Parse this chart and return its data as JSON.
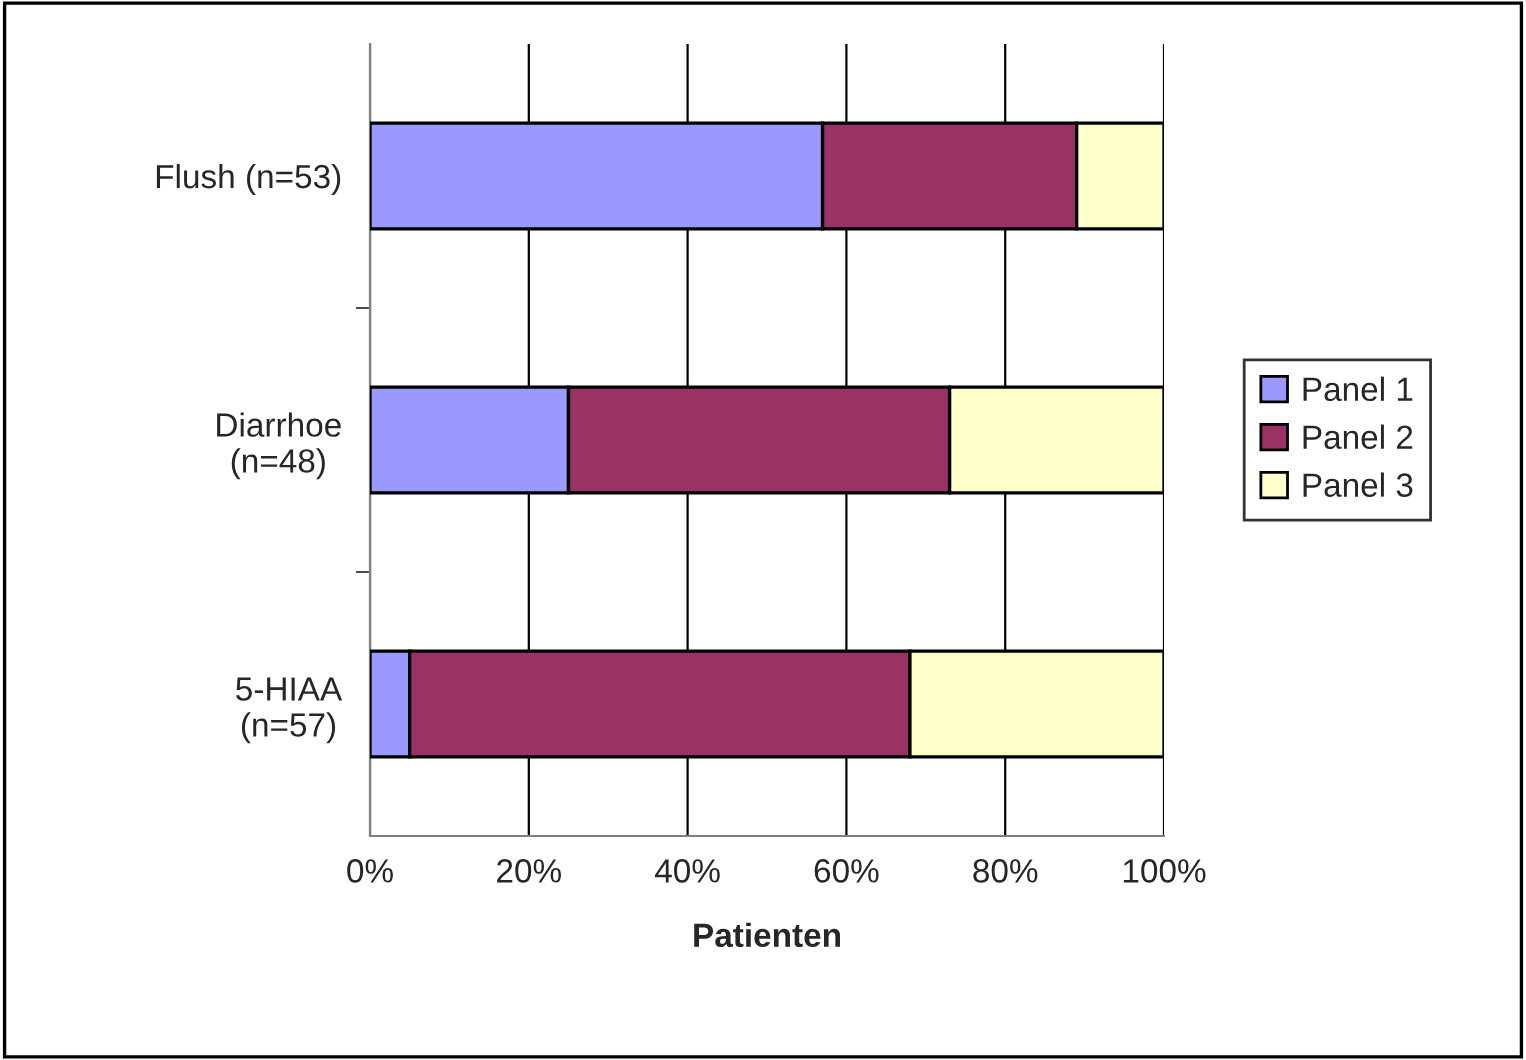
{
  "chart_data": {
    "type": "bar",
    "orientation": "horizontal",
    "stacked": true,
    "categories": [
      "Flush (n=53)",
      "Diarrhoe\n(n=48)",
      "5-HIAA\n(n=57)"
    ],
    "series": [
      {
        "name": "Panel 1",
        "color": "#9999ff",
        "values": [
          57,
          25,
          5
        ]
      },
      {
        "name": "Panel 2",
        "color": "#993366",
        "values": [
          32,
          48,
          63
        ]
      },
      {
        "name": "Panel 3",
        "color": "#ffffcc",
        "values": [
          11,
          27,
          32
        ]
      }
    ],
    "xlabel": "Patienten",
    "xlim": [
      0,
      100
    ],
    "xticks": [
      {
        "value": 0,
        "label": "0%"
      },
      {
        "value": 20,
        "label": "20%"
      },
      {
        "value": 40,
        "label": "40%"
      },
      {
        "value": 60,
        "label": "60%"
      },
      {
        "value": 80,
        "label": "80%"
      },
      {
        "value": 100,
        "label": "100%"
      }
    ],
    "grid": "x",
    "legend": "right"
  }
}
